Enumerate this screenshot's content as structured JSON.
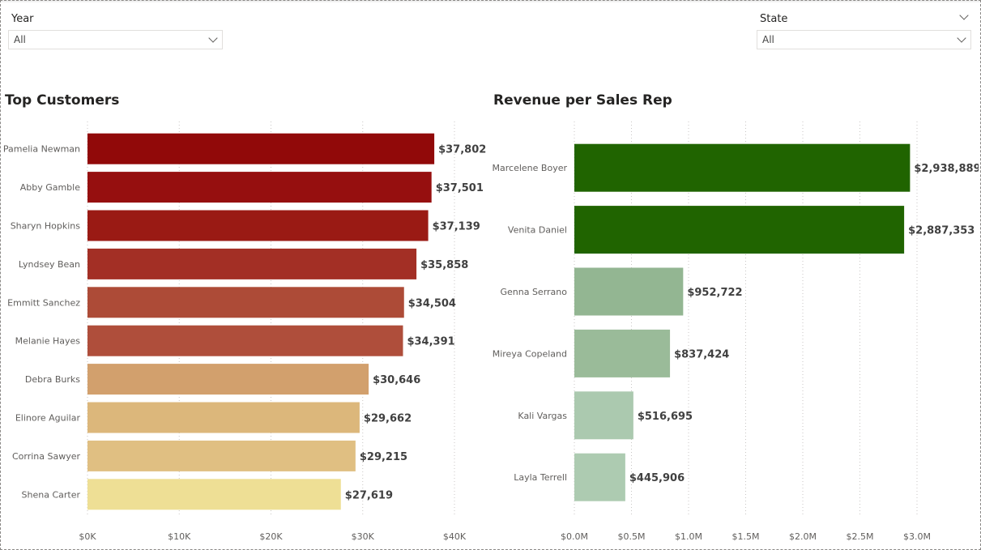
{
  "filters": {
    "year": {
      "label": "Year",
      "value": "All"
    },
    "state": {
      "label": "State",
      "value": "All"
    }
  },
  "chart_data": [
    {
      "type": "bar",
      "orientation": "horizontal",
      "title": "Top Customers",
      "categories": [
        "Pamelia Newman",
        "Abby Gamble",
        "Sharyn Hopkins",
        "Lyndsey Bean",
        "Emmitt Sanchez",
        "Melanie Hayes",
        "Debra Burks",
        "Elinore Aguilar",
        "Corrina Sawyer",
        "Shena Carter"
      ],
      "values": [
        37802,
        37501,
        37139,
        35858,
        34504,
        34391,
        30646,
        29662,
        29215,
        27619
      ],
      "value_labels": [
        "$37,802",
        "$37,501",
        "$37,139",
        "$35,858",
        "$34,504",
        "$34,391",
        "$30,646",
        "$29,662",
        "$29,215",
        "$27,619"
      ],
      "colors": [
        "#910909",
        "#960f0f",
        "#9a1a14",
        "#a32f25",
        "#ad4b37",
        "#af4e3b",
        "#d2a06d",
        "#dcb77b",
        "#e0bf82",
        "#eedf95"
      ],
      "xlim": [
        0,
        40000
      ],
      "xticks": [
        0,
        10000,
        20000,
        30000,
        40000
      ],
      "xtick_labels": [
        "$0K",
        "$10K",
        "$20K",
        "$30K",
        "$40K"
      ],
      "grid": true
    },
    {
      "type": "bar",
      "orientation": "horizontal",
      "title": "Revenue per Sales Rep",
      "categories": [
        "Marcelene Boyer",
        "Venita Daniel",
        "Genna Serrano",
        "Mireya Copeland",
        "Kali Vargas",
        "Layla Terrell"
      ],
      "values": [
        2938889,
        2887353,
        952722,
        837424,
        516695,
        445906
      ],
      "value_labels": [
        "$2,938,889",
        "$2,887,353",
        "$952,722",
        "$837,424",
        "$516,695",
        "$445,906"
      ],
      "colors": [
        "#206400",
        "#206400",
        "#93b692",
        "#9abb99",
        "#abc9af",
        "#adcbb1"
      ],
      "xlim": [
        0,
        3000000
      ],
      "xticks": [
        0,
        500000,
        1000000,
        1500000,
        2000000,
        2500000,
        3000000
      ],
      "xtick_labels": [
        "$0.0M",
        "$0.5M",
        "$1.0M",
        "$1.5M",
        "$2.0M",
        "$2.5M",
        "$3.0M"
      ],
      "grid": true
    }
  ]
}
